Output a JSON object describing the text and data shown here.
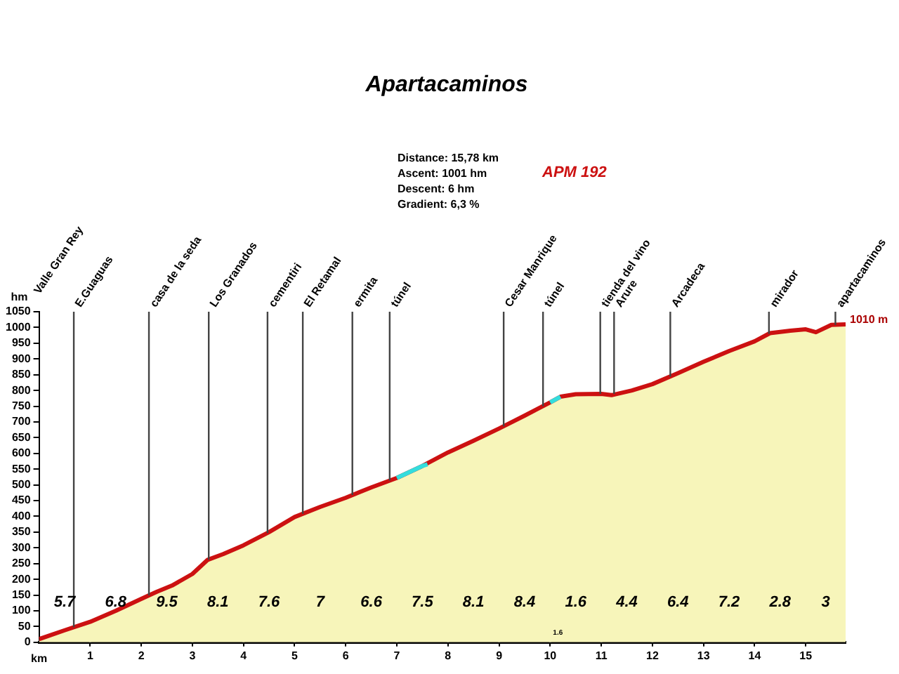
{
  "chart_data": {
    "type": "area",
    "title": "Apartacaminos",
    "xlabel": "km",
    "ylabel": "hm",
    "xlim": [
      0,
      15.78
    ],
    "xticks": [
      1,
      2,
      3,
      4,
      5,
      6,
      7,
      8,
      9,
      10,
      11,
      12,
      13,
      14,
      15
    ],
    "ylim": [
      0,
      1050
    ],
    "yticks": [
      0,
      50,
      100,
      150,
      200,
      250,
      300,
      350,
      400,
      450,
      500,
      550,
      600,
      650,
      700,
      750,
      800,
      850,
      900,
      950,
      1000,
      1050
    ],
    "grid": "x",
    "legend": false,
    "series": [
      {
        "type": "area",
        "color": "#cc1111",
        "x": [
          0,
          0.5,
          1,
          1.5,
          2,
          2.3,
          2.6,
          3,
          3.3,
          3.6,
          4,
          4.5,
          5,
          5.5,
          6,
          6.5,
          7,
          7.5,
          8,
          8.5,
          9,
          9.5,
          10,
          10.2,
          10.5,
          11,
          11.2,
          11.6,
          12,
          12.5,
          13,
          13.5,
          14,
          14.3,
          14.7,
          15,
          15.2,
          15.5,
          15.78
        ],
        "values": [
          10,
          38,
          65,
          100,
          138,
          160,
          180,
          217,
          262,
          280,
          308,
          350,
          398,
          430,
          459,
          492,
          522,
          560,
          603,
          640,
          679,
          720,
          762,
          780,
          788,
          789,
          785,
          800,
          820,
          855,
          891,
          925,
          956,
          982,
          990,
          994,
          985,
          1008,
          1010
        ]
      },
      {
        "type": "line",
        "color": "#33dddd",
        "x": [
          7,
          7.5,
          7.6
        ],
        "values": [
          522,
          560,
          565
        ]
      },
      {
        "type": "line",
        "color": "#33dddd",
        "x": [
          10,
          10.2
        ],
        "values": [
          762,
          780
        ]
      }
    ],
    "annotations": [
      "Distance: 15,78 km",
      "Ascent: 1001 hm",
      "Descent: 6 hm",
      "Gradient: 6,3 %",
      "APM 192",
      "Valle Gran Rey",
      "1010 m",
      "5.7",
      "6.8",
      "9.5",
      "8.1",
      "7.6",
      "7",
      "6.6",
      "7.5",
      "8.1",
      "8.4",
      "1.6",
      "4.4",
      "6.4",
      "7.2",
      "2.8",
      "3",
      "1.6",
      {
        "text": "E.Guaguas",
        "x": 0.68,
        "y": 48
      },
      {
        "text": "casa de la seda",
        "x": 2.15,
        "y": 149
      },
      {
        "text": "Los Granados",
        "x": 3.32,
        "y": 263
      },
      {
        "text": "cementiri",
        "x": 4.47,
        "y": 347
      },
      {
        "text": "El Retamal",
        "x": 5.16,
        "y": 408
      },
      {
        "text": "ermita",
        "x": 6.13,
        "y": 468
      },
      {
        "text": "túnel",
        "x": 6.86,
        "y": 514
      },
      {
        "text": "Cesar Manrique",
        "x": 9.09,
        "y": 686
      },
      {
        "text": "túnel",
        "x": 9.86,
        "y": 750
      },
      {
        "text": "tienda del vino",
        "x": 10.98,
        "y": 789
      },
      {
        "text": "Arure",
        "x": 11.25,
        "y": 789
      },
      {
        "text": "Arcadeca",
        "x": 12.35,
        "y": 844
      },
      {
        "text": "mirador",
        "x": 14.28,
        "y": 980
      },
      {
        "text": "apartacaminos",
        "x": 15.58,
        "y": 1008
      }
    ]
  }
}
